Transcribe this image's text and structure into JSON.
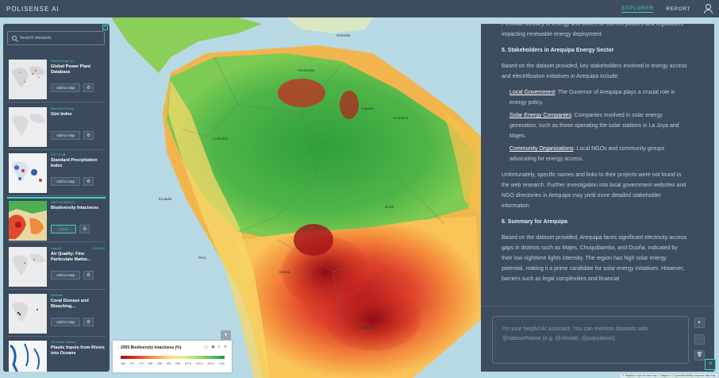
{
  "app": {
    "brand": "POLISENSE AI"
  },
  "nav": {
    "explorer": "EXPLORER",
    "report": "REPORT"
  },
  "sidebar": {
    "search_placeholder": "Search datasets",
    "datasets": [
      {
        "source": "Global Energy Ob...",
        "date": "",
        "title": "Global Power Plant Database",
        "button": "Add to map",
        "active": false
      },
      {
        "source": "World Bank Group",
        "date": "",
        "title": "Gini Index",
        "button": "Add to map",
        "active": false
      },
      {
        "source": "CHC UCSB",
        "date": "",
        "title": "Standard Precipitation Index",
        "button": "Add to map",
        "active": false
      },
      {
        "source": "UNEP-WCMC/SCI...",
        "date": "",
        "title": "Biodiversity Intactness",
        "button": "Active",
        "active": true
      },
      {
        "source": "OpenAQ",
        "date": "11/6/2024",
        "title": "Air Quality: Fine Particulate Matter...",
        "button": "Add to map",
        "active": false
      },
      {
        "source": "ReefBase",
        "date": "",
        "title": "Coral Disease and Bleaching...",
        "button": "Add to map",
        "active": false
      },
      {
        "source": "The Ocean Cleanup",
        "date": "",
        "title": "Plastic Inputs from Rivers into Oceans",
        "button": "Add to map",
        "active": false
      }
    ]
  },
  "legend": {
    "title": "2005 Biodiversity Intactness (%)",
    "ticks": [
      "160",
      "170",
      "172",
      "180",
      "185",
      "190",
      "195",
      "197.5",
      "110.0",
      "112.5",
      ">115"
    ]
  },
  "map_labels": {
    "l1": "Venezuela",
    "l2": "Colombia",
    "l3": "Guyana",
    "l4": "Suriname",
    "l5": "Ecuador",
    "l6": "Peru",
    "l7": "Brazil",
    "l8": "Bolivia",
    "l9": "Paraguay",
    "l10": "Granada"
  },
  "chat": {
    "intro": "Peruvian Ministry of Energy and Mines for current policies and regulations impacting renewable energy deployment.",
    "h5": "5. Stakeholders in Arequipa Energy Sector",
    "p5": "Based on the dataset provided, key stakeholders involved in energy access and electrification initiatives in Arequipa include:",
    "b1_label": "Local Government",
    "b1_text": ": The Governor of Arequipa plays a crucial role in energy policy.",
    "b2_label": "Solar Energy Companies",
    "b2_text": ": Companies involved in solar energy generation, such as those operating the solar stations in La Joya and Majes.",
    "b3_label": "Community Organizations",
    "b3_text": ": Local NGOs and community groups advocating for energy access.",
    "p_unfortunately": "Unfortunately, specific names and links to their projects were not found in the web research. Further investigation into local government websites and NGO directories in Arequipa may yield more detailed stakeholder information.",
    "h6": "6. Summary for Arequipa",
    "p6": "Based on the dataset provided, Arequipa faces significant electricity access gaps in districts such as Majes, Chuquibamba, and Ocoña, indicated by their low nighttime lights intensity. The region has high solar energy potential, making it a prime candidate for solar energy initiatives. However, barriers such as legal complexities and financial",
    "composer_placeholder": "I'm your helpful AI assistant. You can mention datasets with @datasetName (e.g. @climate, @population)."
  },
  "attribution": "© Mapbox Improve this map © Mapbox © OpenStreetMap Improve this map"
}
